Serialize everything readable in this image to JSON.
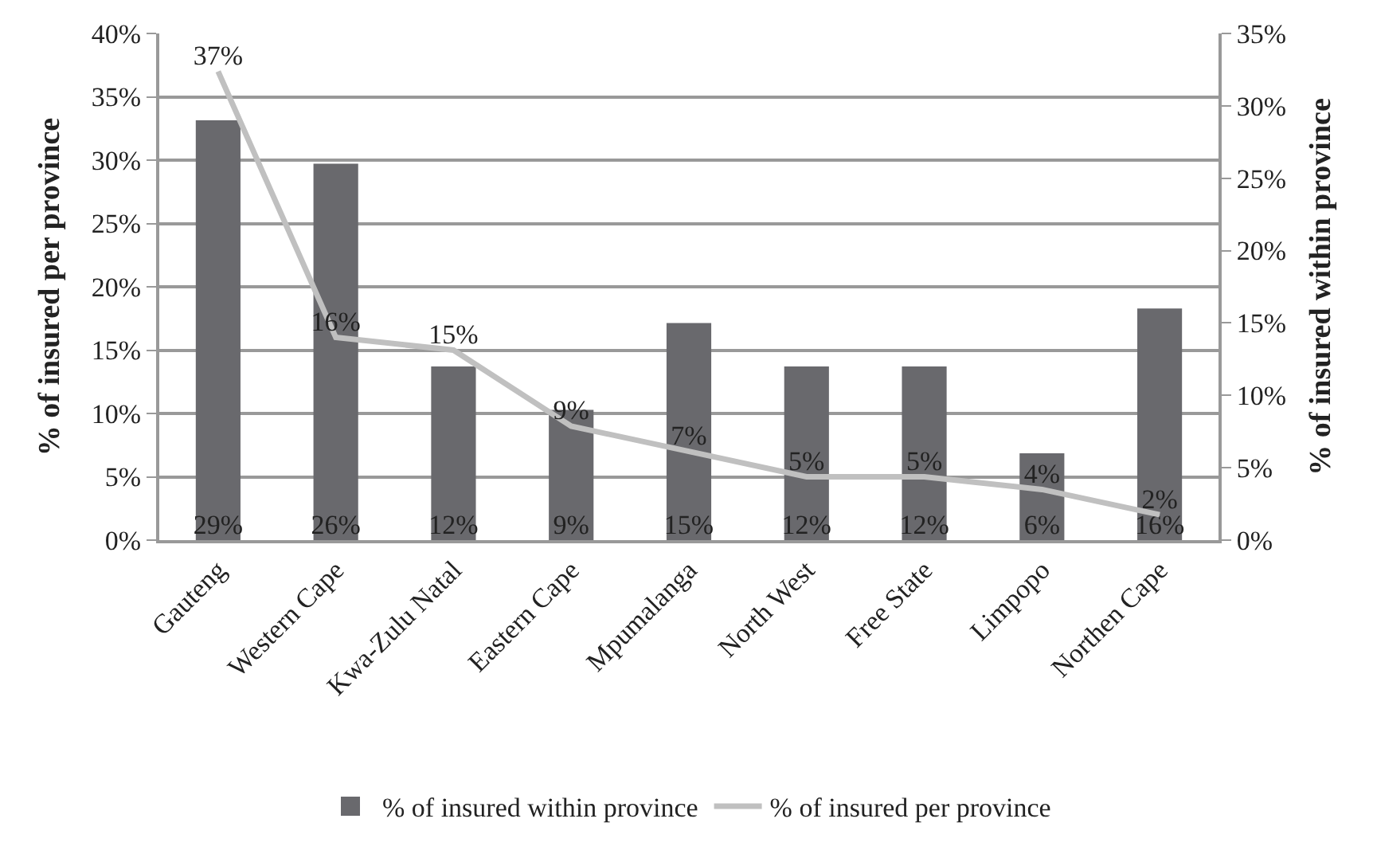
{
  "chart_data": {
    "type": "bar",
    "categories": [
      "Gauteng",
      "Western Cape",
      "Kwa-Zulu Natal",
      "Eastern Cape",
      "Mpumalanga",
      "North West",
      "Free State",
      "Limpopo",
      "Northen Cape"
    ],
    "series": [
      {
        "name": "% of insured within province",
        "axis": "y2",
        "color": "#69696d",
        "values": [
          29,
          26,
          12,
          9,
          15,
          12,
          12,
          6,
          16
        ],
        "value_labels": [
          "29%",
          "26%",
          "12%",
          "9%",
          "15%",
          "12%",
          "12%",
          "6%",
          "16%"
        ]
      },
      {
        "name": "% of insured per province",
        "type": "line",
        "axis": "y",
        "color": "#c0c0c0",
        "values": [
          37,
          16,
          15,
          9,
          7,
          5,
          5,
          4,
          2
        ],
        "value_labels": [
          "37%",
          "16%",
          "15%",
          "9%",
          "7%",
          "5%",
          "5%",
          "4%",
          "2%"
        ]
      }
    ],
    "ylabel": "% of insured per province",
    "y2label": "% of insured within province",
    "ylim": [
      0,
      40
    ],
    "yticks": [
      {
        "value": 0,
        "label": "0%"
      },
      {
        "value": 5,
        "label": "5%"
      },
      {
        "value": 10,
        "label": "10%"
      },
      {
        "value": 15,
        "label": "15%"
      },
      {
        "value": 20,
        "label": "20%"
      },
      {
        "value": 25,
        "label": "25%"
      },
      {
        "value": 30,
        "label": "30%"
      },
      {
        "value": 35,
        "label": "35%"
      },
      {
        "value": 40,
        "label": "40%"
      }
    ],
    "y2lim": [
      0,
      35
    ],
    "y2ticks": [
      {
        "value": 0,
        "label": "0%"
      },
      {
        "value": 5,
        "label": "5%"
      },
      {
        "value": 10,
        "label": "10%"
      },
      {
        "value": 15,
        "label": "15%"
      },
      {
        "value": 20,
        "label": "20%"
      },
      {
        "value": 25,
        "label": "25%"
      },
      {
        "value": 30,
        "label": "30%"
      },
      {
        "value": 35,
        "label": "35%"
      }
    ],
    "grid": "y",
    "legend": "bottom",
    "marker": "none",
    "line_style": "solid"
  }
}
